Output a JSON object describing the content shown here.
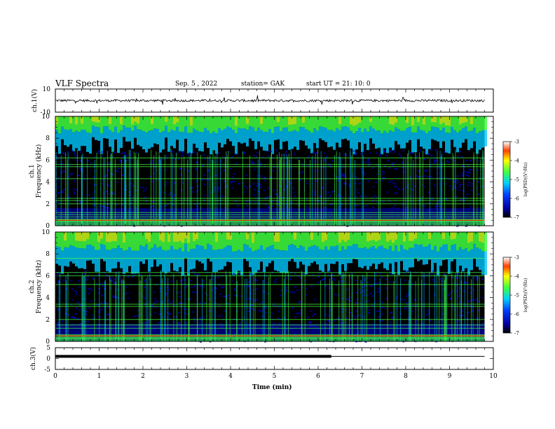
{
  "header": {
    "title": "VLF Spectra",
    "date": "Sep. 5 , 2022",
    "station": "station= GAK",
    "start": "start UT = 21: 10: 0"
  },
  "colors": {
    "spectrogram_background": "#000000",
    "low_intensity": "#0000c8",
    "mid_intensity": "#00c8ff",
    "high_intensity": "#40ff40",
    "peak_intensity": "#ff2000",
    "trace": "#000000"
  },
  "chart_data": [
    {
      "type": "line",
      "name": "ch1-waveform",
      "ylabel": "ch.1(V)",
      "ylim": [
        -10,
        10
      ],
      "yticks": [
        "10",
        "-10"
      ],
      "xlim": [
        0,
        10
      ],
      "description_values": {
        "baseline": 0,
        "typical_amplitude": 2
      }
    },
    {
      "type": "heatmap",
      "name": "ch1-spectrogram",
      "ylabel": "ch.1 Frequency (kHz)",
      "ylim": [
        0,
        10
      ],
      "xlim": [
        0,
        10
      ],
      "data_x_end": 9.8,
      "yticks": [
        "0",
        "2",
        "4",
        "6",
        "8",
        "10"
      ],
      "colorbar": {
        "label": "log(PSD)(V²/Hz)",
        "ticks": [
          "-3",
          "-4",
          "-5",
          "-6",
          "-7"
        ],
        "range": [
          -7,
          -3
        ]
      },
      "horizontal_lines_khz": [
        0.4,
        0.6,
        0.8,
        1.0,
        1.2,
        2.0,
        2.3,
        2.5,
        4.3,
        5.4,
        5.6,
        6.2
      ],
      "upper_band_khz": [
        7.0,
        10.0
      ]
    },
    {
      "type": "heatmap",
      "name": "ch2-spectrogram",
      "ylabel": "ch.2 Frequency (kHz)",
      "ylim": [
        0,
        10
      ],
      "xlim": [
        0,
        10
      ],
      "data_x_end": 9.8,
      "yticks": [
        "0",
        "2",
        "4",
        "6",
        "8",
        "10"
      ],
      "colorbar": {
        "label": "log(PSD)(V²/Hz)",
        "ticks": [
          "-3",
          "-4",
          "-5",
          "-6",
          "-7"
        ],
        "range": [
          -7,
          -3
        ]
      },
      "horizontal_lines_khz": [
        0.3,
        0.6,
        1.2,
        1.5,
        2.0,
        3.2,
        3.4,
        5.2,
        6.0,
        6.3,
        7.6
      ],
      "upper_band_khz": [
        6.5,
        10.0
      ]
    },
    {
      "type": "line",
      "name": "ch3-level",
      "ylabel": "ch.3(V)",
      "ylim": [
        -5,
        5
      ],
      "yticks": [
        "5",
        "0",
        "-5"
      ],
      "xlim": [
        0,
        10
      ],
      "xlabel": "Time (min)",
      "xticks": [
        "0",
        "1",
        "2",
        "3",
        "4",
        "5",
        "6",
        "7",
        "8",
        "9",
        "10"
      ],
      "level": 1,
      "thick_segment_end": 6.3,
      "line_end": 9.8
    }
  ]
}
